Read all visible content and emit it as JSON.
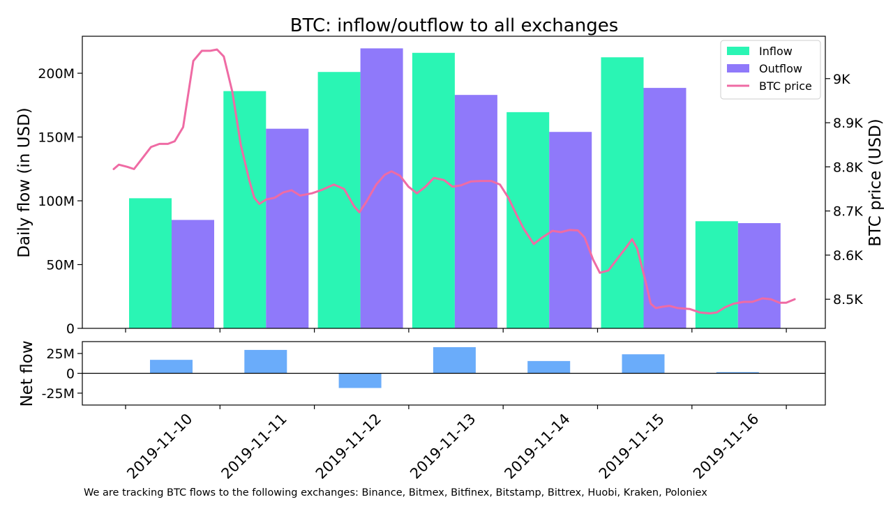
{
  "chart_data": [
    {
      "type": "bar",
      "title": "BTC: inflow/outflow to all exchanges",
      "ylabel": "Daily flow (in USD)",
      "ylabel_right": "BTC price (USD)",
      "ylim": [
        0,
        229000000
      ],
      "yticks": [
        {
          "value": 0,
          "label": "0"
        },
        {
          "value": 50000000,
          "label": "50M"
        },
        {
          "value": 100000000,
          "label": "100M"
        },
        {
          "value": 150000000,
          "label": "150M"
        },
        {
          "value": 200000000,
          "label": "200M"
        }
      ],
      "y2lim": [
        8434,
        9096
      ],
      "y2ticks": [
        {
          "value": 8500,
          "label": "8.5K"
        },
        {
          "value": 8600,
          "label": "8.6K"
        },
        {
          "value": 8700,
          "label": "8.7K"
        },
        {
          "value": 8800,
          "label": "8.8K"
        },
        {
          "value": 8900,
          "label": "8.9K"
        },
        {
          "value": 9000,
          "label": "9K"
        }
      ],
      "categories": [
        "2019-11-10",
        "2019-11-11",
        "2019-11-12",
        "2019-11-13",
        "2019-11-14",
        "2019-11-15",
        "2019-11-16"
      ],
      "series": [
        {
          "name": "Inflow",
          "color": "#2af5b4",
          "values": [
            102000000,
            186000000,
            201000000,
            216000000,
            169500000,
            212500000,
            84000000
          ]
        },
        {
          "name": "Outflow",
          "color": "#8f79fa",
          "values": [
            85000000,
            156500000,
            219500000,
            183000000,
            154000000,
            188500000,
            82500000
          ]
        }
      ],
      "line": {
        "name": "BTC price",
        "color": "#ef6ba4",
        "points": [
          [
            0.0,
            8795
          ],
          [
            0.06,
            8805
          ],
          [
            0.16,
            8800
          ],
          [
            0.24,
            8795
          ],
          [
            0.32,
            8815
          ],
          [
            0.44,
            8845
          ],
          [
            0.54,
            8852
          ],
          [
            0.64,
            8852
          ],
          [
            0.72,
            8858
          ],
          [
            0.82,
            8890
          ],
          [
            0.94,
            9040
          ],
          [
            1.04,
            9063
          ],
          [
            1.14,
            9063
          ],
          [
            1.22,
            9066
          ],
          [
            1.3,
            9050
          ],
          [
            1.4,
            8970
          ],
          [
            1.5,
            8850
          ],
          [
            1.6,
            8770
          ],
          [
            1.66,
            8730
          ],
          [
            1.72,
            8716
          ],
          [
            1.8,
            8726
          ],
          [
            1.9,
            8730
          ],
          [
            2.0,
            8742
          ],
          [
            2.1,
            8747
          ],
          [
            2.2,
            8735
          ],
          [
            2.34,
            8740
          ],
          [
            2.46,
            8748
          ],
          [
            2.6,
            8760
          ],
          [
            2.72,
            8750
          ],
          [
            2.84,
            8710
          ],
          [
            2.9,
            8697
          ],
          [
            2.98,
            8720
          ],
          [
            3.1,
            8760
          ],
          [
            3.2,
            8782
          ],
          [
            3.28,
            8790
          ],
          [
            3.38,
            8780
          ],
          [
            3.48,
            8755
          ],
          [
            3.58,
            8740
          ],
          [
            3.68,
            8755
          ],
          [
            3.78,
            8775
          ],
          [
            3.9,
            8770
          ],
          [
            4.0,
            8755
          ],
          [
            4.1,
            8758
          ],
          [
            4.22,
            8767
          ],
          [
            4.34,
            8768
          ],
          [
            4.46,
            8768
          ],
          [
            4.56,
            8760
          ],
          [
            4.66,
            8730
          ],
          [
            4.76,
            8690
          ],
          [
            4.84,
            8660
          ],
          [
            4.96,
            8625
          ],
          [
            5.06,
            8640
          ],
          [
            5.18,
            8655
          ],
          [
            5.28,
            8652
          ],
          [
            5.38,
            8657
          ],
          [
            5.48,
            8656
          ],
          [
            5.56,
            8640
          ],
          [
            5.66,
            8590
          ],
          [
            5.74,
            8560
          ],
          [
            5.84,
            8565
          ],
          [
            5.96,
            8595
          ],
          [
            6.06,
            8620
          ],
          [
            6.12,
            8636
          ],
          [
            6.18,
            8615
          ],
          [
            6.28,
            8540
          ],
          [
            6.34,
            8490
          ],
          [
            6.4,
            8480
          ],
          [
            6.48,
            8483
          ],
          [
            6.56,
            8485
          ],
          [
            6.66,
            8480
          ],
          [
            6.8,
            8478
          ],
          [
            6.92,
            8470
          ],
          [
            7.04,
            8468
          ],
          [
            7.12,
            8470
          ],
          [
            7.22,
            8482
          ],
          [
            7.32,
            8490
          ],
          [
            7.44,
            8494
          ],
          [
            7.54,
            8494
          ],
          [
            7.66,
            8502
          ],
          [
            7.76,
            8500
          ],
          [
            7.86,
            8492
          ],
          [
            7.94,
            8492
          ],
          [
            8.04,
            8500
          ]
        ]
      },
      "legend": {
        "placement": "top-right",
        "entries": [
          "Inflow",
          "Outflow",
          "BTC price"
        ]
      }
    },
    {
      "type": "bar",
      "ylabel": "Net flow",
      "ylim": [
        -40000000,
        40000000
      ],
      "yticks": [
        {
          "value": -25000000,
          "label": "-25M"
        },
        {
          "value": 0,
          "label": "0"
        },
        {
          "value": 25000000,
          "label": "25M"
        }
      ],
      "categories": [
        "2019-11-10",
        "2019-11-11",
        "2019-11-12",
        "2019-11-13",
        "2019-11-14",
        "2019-11-15",
        "2019-11-16"
      ],
      "series": [
        {
          "name": "Net flow",
          "color": "#6aacfa",
          "values": [
            17000000,
            29500000,
            -18500000,
            33000000,
            15500000,
            24000000,
            1500000
          ]
        }
      ]
    }
  ],
  "footnote": "We are tracking BTC flows to the following exchanges: Binance, Bitmex, Bitfinex, Bitstamp, Bittrex, Huobi, Kraken, Poloniex",
  "colors": {
    "inflow": "#2af5b4",
    "outflow": "#8f79fa",
    "price": "#ef6ba4",
    "net": "#6aacfa"
  }
}
